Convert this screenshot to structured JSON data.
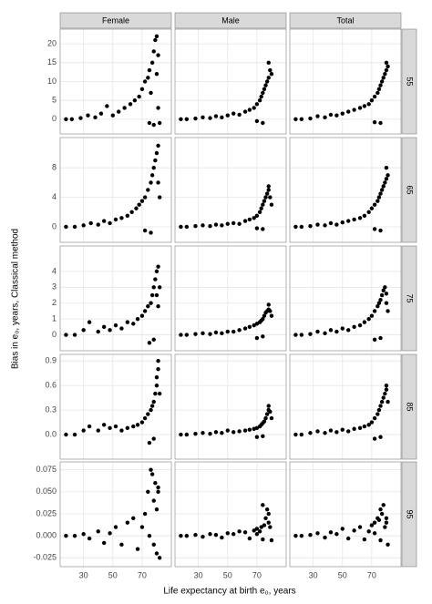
{
  "chart_data": {
    "type": "scatter",
    "xlabel": "Life expectancy at birth e₀, years",
    "ylabel": "Bias in e₀, years, Classical method",
    "columns": [
      "Female",
      "Male",
      "Total"
    ],
    "xlim": [
      14,
      90
    ],
    "xticks": [
      30,
      50,
      70
    ],
    "grid": true,
    "color": "#000000",
    "rows": [
      {
        "label": "55",
        "ylim": [
          -3.9,
          23.9
        ],
        "yticks": [
          0,
          5,
          10,
          15,
          20
        ],
        "panels": [
          {
            "x": [
              18,
              22,
              28,
              33,
              38,
              42,
              46,
              50,
              54,
              58,
              62,
              65,
              68,
              70,
              72,
              74,
              75,
              76,
              77,
              78,
              79,
              80,
              80,
              81,
              81,
              82,
              78,
              75
            ],
            "y": [
              0,
              0,
              0.3,
              1,
              0.5,
              1.5,
              3.5,
              1,
              2,
              3,
              4,
              5,
              6,
              8,
              10,
              11,
              13,
              7,
              15,
              18,
              21,
              22,
              12,
              17,
              3,
              -1,
              -1.5,
              -1
            ]
          },
          {
            "x": [
              18,
              22,
              28,
              33,
              38,
              42,
              46,
              50,
              54,
              58,
              62,
              65,
              68,
              70,
              72,
              73,
              74,
              75,
              76,
              77,
              78,
              78,
              79,
              80,
              74,
              70
            ],
            "y": [
              0,
              0,
              0.2,
              0.5,
              0.3,
              0.8,
              0.5,
              1,
              1.5,
              1.2,
              2,
              2.5,
              3,
              4,
              5,
              6,
              7,
              8,
              9,
              10,
              11,
              15,
              13,
              12,
              -1,
              -0.5
            ]
          },
          {
            "x": [
              18,
              22,
              28,
              33,
              38,
              42,
              46,
              50,
              54,
              58,
              62,
              65,
              68,
              70,
              72,
              74,
              75,
              76,
              77,
              78,
              79,
              80,
              80,
              81,
              76,
              72
            ],
            "y": [
              0,
              0,
              0.2,
              0.8,
              0.5,
              1.2,
              1,
              1.5,
              2,
              2.5,
              3,
              3.5,
              4,
              5,
              6,
              7,
              8,
              9,
              10,
              11,
              12,
              15,
              13,
              14,
              -1,
              -0.8
            ]
          }
        ]
      },
      {
        "label": "65",
        "ylim": [
          -2.1,
          12.1
        ],
        "yticks": [
          0,
          4,
          8
        ],
        "panels": [
          {
            "x": [
              18,
              24,
              30,
              35,
              40,
              44,
              48,
              52,
              56,
              60,
              63,
              66,
              68,
              70,
              72,
              74,
              76,
              77,
              78,
              79,
              80,
              81,
              81,
              82,
              76,
              72
            ],
            "y": [
              0,
              0,
              0.2,
              0.5,
              0.3,
              0.8,
              0.5,
              1,
              1.2,
              1.5,
              2,
              2.5,
              3,
              3.5,
              4,
              5,
              6,
              7,
              8,
              9,
              10,
              11,
              6,
              4,
              -0.8,
              -0.5
            ]
          },
          {
            "x": [
              18,
              22,
              28,
              33,
              38,
              42,
              46,
              50,
              54,
              58,
              62,
              65,
              68,
              70,
              72,
              73,
              74,
              75,
              76,
              77,
              78,
              78,
              79,
              80,
              74,
              70
            ],
            "y": [
              0,
              0,
              0.1,
              0.2,
              0.1,
              0.3,
              0.2,
              0.4,
              0.5,
              0.4,
              0.8,
              1,
              1.2,
              1.5,
              2,
              2.5,
              3,
              3.5,
              4,
              4.5,
              5,
              5.5,
              4,
              3,
              -0.3,
              -0.2
            ]
          },
          {
            "x": [
              18,
              22,
              28,
              33,
              38,
              42,
              46,
              50,
              54,
              58,
              62,
              65,
              68,
              70,
              72,
              74,
              75,
              76,
              77,
              78,
              79,
              80,
              80,
              81,
              76,
              72
            ],
            "y": [
              0,
              0,
              0.1,
              0.3,
              0.2,
              0.5,
              0.3,
              0.6,
              0.8,
              1,
              1.2,
              1.5,
              2,
              2.5,
              3,
              3.5,
              4,
              4.5,
              5,
              5.5,
              6,
              8,
              6.5,
              7,
              -0.5,
              -0.3
            ]
          }
        ]
      },
      {
        "label": "75",
        "ylim": [
          -1,
          5.6
        ],
        "yticks": [
          0,
          1,
          2,
          3,
          4
        ],
        "panels": [
          {
            "x": [
              18,
              24,
              30,
              34,
              40,
              44,
              48,
              52,
              56,
              60,
              64,
              67,
              70,
              72,
              74,
              76,
              77,
              78,
              79,
              80,
              80,
              81,
              81,
              82,
              78,
              75
            ],
            "y": [
              0,
              0,
              0.3,
              0.8,
              0.2,
              0.5,
              0.3,
              0.6,
              0.4,
              0.8,
              0.7,
              1,
              1.2,
              1.5,
              1.8,
              2,
              2.5,
              3,
              3.5,
              4,
              2.5,
              4.3,
              1.8,
              3,
              -0.3,
              -0.5
            ]
          },
          {
            "x": [
              18,
              22,
              28,
              33,
              38,
              42,
              46,
              50,
              54,
              58,
              62,
              65,
              68,
              70,
              72,
              73,
              74,
              75,
              76,
              77,
              78,
              78,
              79,
              80,
              74,
              70
            ],
            "y": [
              0,
              0,
              0.05,
              0.1,
              0.05,
              0.15,
              0.1,
              0.2,
              0.2,
              0.3,
              0.4,
              0.5,
              0.6,
              0.7,
              0.8,
              0.9,
              1,
              1.2,
              1.4,
              1.5,
              1.6,
              1.9,
              1.5,
              1.2,
              -0.1,
              -0.2
            ]
          },
          {
            "x": [
              18,
              22,
              28,
              33,
              38,
              42,
              46,
              50,
              54,
              58,
              62,
              65,
              68,
              70,
              72,
              74,
              75,
              76,
              77,
              78,
              79,
              80,
              80,
              81,
              76,
              72
            ],
            "y": [
              0,
              0,
              0.05,
              0.2,
              0.1,
              0.3,
              0.2,
              0.4,
              0.3,
              0.5,
              0.6,
              0.8,
              1,
              1.2,
              1.5,
              1.8,
              2,
              2.2,
              2.5,
              2.8,
              3,
              2,
              2.6,
              1.5,
              -0.2,
              -0.3
            ]
          }
        ]
      },
      {
        "label": "85",
        "ylim": [
          -0.3,
          0.98
        ],
        "yticks": [
          {
            "value": 0,
            "label": "0.0"
          },
          0.3,
          0.6,
          0.9
        ],
        "panels": [
          {
            "x": [
              18,
              24,
              30,
              34,
              40,
              44,
              48,
              52,
              56,
              60,
              64,
              67,
              70,
              72,
              74,
              76,
              77,
              78,
              79,
              80,
              80,
              81,
              81,
              82,
              78,
              75
            ],
            "y": [
              0,
              0,
              0.05,
              0.1,
              0.05,
              0.12,
              0.08,
              0.1,
              0.05,
              0.08,
              0.1,
              0.12,
              0.15,
              0.2,
              0.25,
              0.3,
              0.35,
              0.4,
              0.5,
              0.6,
              0.7,
              0.9,
              0.8,
              0.5,
              -0.05,
              -0.1
            ]
          },
          {
            "x": [
              18,
              22,
              28,
              33,
              38,
              42,
              46,
              50,
              54,
              58,
              62,
              65,
              68,
              70,
              72,
              73,
              74,
              75,
              76,
              77,
              78,
              78,
              79,
              80,
              74,
              70
            ],
            "y": [
              0,
              0,
              0.01,
              0.02,
              0.01,
              0.03,
              0.02,
              0.05,
              0.03,
              0.04,
              0.05,
              0.06,
              0.07,
              0.08,
              0.1,
              0.12,
              0.14,
              0.16,
              0.2,
              0.25,
              0.3,
              0.35,
              0.28,
              0.2,
              -0.02,
              -0.03
            ]
          },
          {
            "x": [
              18,
              22,
              28,
              33,
              38,
              42,
              46,
              50,
              54,
              58,
              62,
              65,
              68,
              70,
              72,
              74,
              75,
              76,
              77,
              78,
              79,
              80,
              80,
              81,
              76,
              72
            ],
            "y": [
              0,
              0,
              0.02,
              0.04,
              0.02,
              0.05,
              0.03,
              0.06,
              0.04,
              0.07,
              0.08,
              0.1,
              0.12,
              0.15,
              0.2,
              0.25,
              0.3,
              0.35,
              0.4,
              0.45,
              0.5,
              0.6,
              0.55,
              0.4,
              -0.03,
              -0.05
            ]
          }
        ]
      },
      {
        "label": "95",
        "ylim": [
          -0.035,
          0.084
        ],
        "yticks": [
          -0.025,
          {
            "value": 0,
            "label": "0.000"
          },
          0.025,
          {
            "value": 0.05,
            "label": "0.050"
          },
          0.075
        ],
        "panels": [
          {
            "x": [
              18,
              24,
              30,
              34,
              40,
              44,
              48,
              52,
              56,
              60,
              64,
              67,
              70,
              72,
              74,
              76,
              77,
              78,
              79,
              80,
              80,
              81,
              81,
              82,
              78,
              75
            ],
            "y": [
              0,
              0,
              0.002,
              -0.003,
              0.005,
              -0.008,
              0.003,
              0.01,
              -0.01,
              0.015,
              0.02,
              -0.015,
              0.01,
              0.025,
              0.05,
              0.075,
              0.07,
              0.04,
              0.06,
              0.03,
              -0.02,
              0.05,
              0.055,
              -0.025,
              -0.01,
              0
            ]
          },
          {
            "x": [
              18,
              22,
              28,
              33,
              38,
              42,
              46,
              50,
              54,
              58,
              62,
              65,
              68,
              70,
              72,
              73,
              74,
              75,
              76,
              77,
              78,
              78,
              79,
              80,
              74,
              70
            ],
            "y": [
              0,
              0,
              0.001,
              -0.001,
              0.002,
              0.001,
              -0.002,
              0.003,
              0.002,
              0.005,
              0.004,
              -0.003,
              0.006,
              0.008,
              0.005,
              0.01,
              0.035,
              0.012,
              0.02,
              0.03,
              0.015,
              0.025,
              0.01,
              -0.005,
              -0.004,
              0.002
            ]
          },
          {
            "x": [
              18,
              22,
              28,
              33,
              38,
              42,
              46,
              50,
              54,
              58,
              62,
              65,
              68,
              70,
              72,
              74,
              75,
              76,
              77,
              78,
              79,
              80,
              80,
              81,
              76,
              72
            ],
            "y": [
              0,
              0,
              0.001,
              0.003,
              -0.002,
              0.004,
              0.002,
              0.008,
              -0.003,
              0.006,
              0.01,
              -0.004,
              0.005,
              0.012,
              0.015,
              0.02,
              0.018,
              0.03,
              0.025,
              0.035,
              0.01,
              0.015,
              0.02,
              -0.01,
              -0.005,
              0.003
            ]
          }
        ]
      }
    ]
  }
}
